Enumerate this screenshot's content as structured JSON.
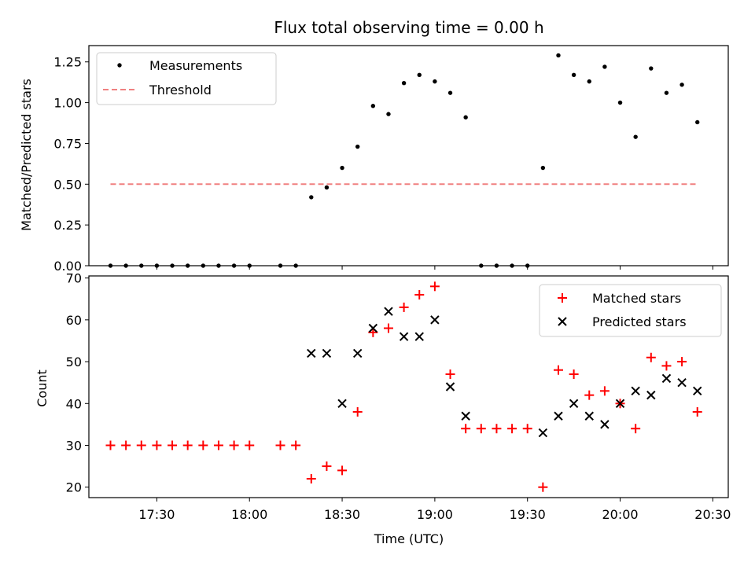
{
  "chart_data": [
    {
      "type": "scatter",
      "title": "Flux total observing time = 0.00 h",
      "xlabel": "",
      "ylabel": "Matched/Predicted stars",
      "ylim": [
        0,
        1.35
      ],
      "yticks": [
        "0.00",
        "0.25",
        "0.50",
        "0.75",
        "1.00",
        "1.25"
      ],
      "legend_position": "top-left",
      "series": [
        {
          "name": "Measurements",
          "marker": "dot",
          "color": "#000000",
          "x": [
            "17:15",
            "17:20",
            "17:25",
            "17:30",
            "17:35",
            "17:40",
            "17:45",
            "17:50",
            "17:55",
            "18:00",
            "18:10",
            "18:15",
            "18:20",
            "18:25",
            "18:30",
            "18:35",
            "18:40",
            "18:45",
            "18:50",
            "18:55",
            "19:00",
            "19:05",
            "19:10",
            "19:15",
            "19:20",
            "19:25",
            "19:30",
            "19:35",
            "19:40",
            "19:45",
            "19:50",
            "19:55",
            "20:00",
            "20:05",
            "20:10",
            "20:15",
            "20:20",
            "20:25"
          ],
          "values": [
            0,
            0,
            0,
            0,
            0,
            0,
            0,
            0,
            0,
            0,
            0,
            0,
            0.42,
            0.48,
            0.6,
            0.73,
            0.98,
            0.93,
            1.12,
            1.17,
            1.13,
            1.06,
            0.91,
            0,
            0,
            0,
            0,
            0.6,
            1.29,
            1.17,
            1.13,
            1.22,
            1.0,
            0.79,
            1.21,
            1.06,
            1.11,
            0.88
          ]
        },
        {
          "name": "Threshold",
          "type": "line",
          "style": "dashed",
          "color": "#f08080",
          "x": [
            "17:15",
            "20:25"
          ],
          "values": [
            0.5,
            0.5
          ]
        }
      ]
    },
    {
      "type": "scatter",
      "title": "",
      "xlabel": "Time (UTC)",
      "ylabel": "Count",
      "ylim": [
        17.5,
        70.5
      ],
      "yticks": [
        "20",
        "30",
        "40",
        "50",
        "60",
        "70"
      ],
      "xticks": [
        "17:30",
        "18:00",
        "18:30",
        "19:00",
        "19:30",
        "20:00",
        "20:30"
      ],
      "legend_position": "top-right",
      "series": [
        {
          "name": "Matched stars",
          "marker": "plus",
          "color": "#ff0000",
          "x": [
            "17:15",
            "17:20",
            "17:25",
            "17:30",
            "17:35",
            "17:40",
            "17:45",
            "17:50",
            "17:55",
            "18:00",
            "18:10",
            "18:15",
            "18:20",
            "18:25",
            "18:30",
            "18:35",
            "18:40",
            "18:45",
            "18:50",
            "18:55",
            "19:00",
            "19:05",
            "19:10",
            "19:15",
            "19:20",
            "19:25",
            "19:30",
            "19:35",
            "19:40",
            "19:45",
            "19:50",
            "19:55",
            "20:00",
            "20:05",
            "20:10",
            "20:15",
            "20:20",
            "20:25"
          ],
          "values": [
            30,
            30,
            30,
            30,
            30,
            30,
            30,
            30,
            30,
            30,
            30,
            30,
            22,
            25,
            24,
            38,
            57,
            58,
            63,
            66,
            68,
            47,
            34,
            34,
            34,
            34,
            34,
            20,
            48,
            47,
            42,
            43,
            40,
            34,
            51,
            49,
            50,
            38
          ]
        },
        {
          "name": "Predicted stars",
          "marker": "x",
          "color": "#000000",
          "x": [
            "18:20",
            "18:25",
            "18:30",
            "18:35",
            "18:40",
            "18:45",
            "18:50",
            "18:55",
            "19:00",
            "19:05",
            "19:10",
            "19:35",
            "19:40",
            "19:45",
            "19:50",
            "19:55",
            "20:00",
            "20:05",
            "20:10",
            "20:15",
            "20:20",
            "20:25"
          ],
          "values": [
            52,
            52,
            40,
            52,
            58,
            62,
            56,
            56,
            60,
            44,
            37,
            33,
            37,
            40,
            37,
            35,
            40,
            43,
            42,
            46,
            45,
            43
          ]
        }
      ]
    }
  ]
}
